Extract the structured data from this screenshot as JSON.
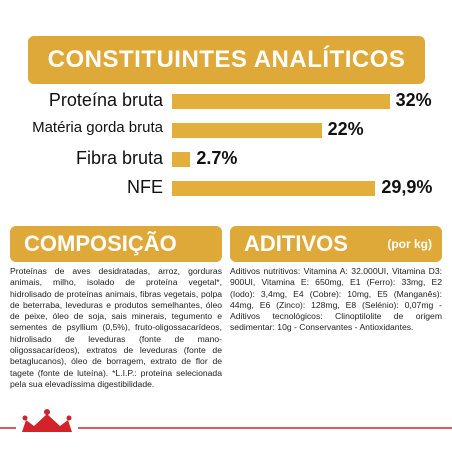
{
  "chart_data": {
    "type": "bar",
    "title": "CONSTITUINTES ANALÍTICOS",
    "categories": [
      "Proteína bruta",
      "Matéria gorda bruta",
      "Fibra bruta",
      "NFE"
    ],
    "values": [
      32,
      22,
      2.7,
      29.9
    ],
    "value_labels": [
      "32%",
      "22%",
      "2.7%",
      "29,9%"
    ],
    "color": "#e2ae3c"
  },
  "composition": {
    "title": "COMPOSIÇÃO",
    "text": "Proteínas de aves desidratadas, arroz, gorduras animais, milho, isolado de proteína vegetal*, hidrolisado de proteínas animais, fibras vegetais, polpa de beterraba, leveduras e produtos semelhantes, óleo de peixe, óleo de soja, sais minerais, tegumento e sementes de psyllium (0,5%), fruto-oligossacarídeos, hidrolisado de leveduras (fonte de mano-oligossacarídeos), extratos de leveduras (fonte de betaglucanos), óleo de borragem, extrato de flor de tagete (fonte de luteína). *L.I.P.: proteína selecionada pela sua elevadíssima digestibilidade."
  },
  "additives": {
    "title": "ADITIVOS",
    "unit": "(por kg)",
    "text": "Aditivos nutritivos: Vitamina A: 32.000UI, Vitamina D3: 900UI, Vitamina E: 650mg, E1 (Ferro): 33mg, E2 (Iodo): 3,4mg, E4 (Cobre): 10mg, E5 (Manganês): 44mg, E6 (Zinco): 128mg, E8 (Selénio): 0,07mg - Aditivos tecnológicos: Clinoptilolite de origem sedimentar: 10g - Conservantes - Antioxidantes."
  }
}
